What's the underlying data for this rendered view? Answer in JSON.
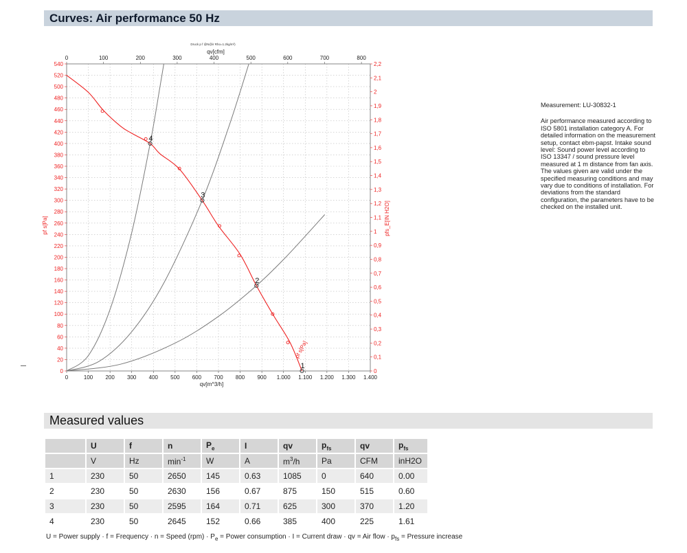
{
  "header": {
    "title": "Curves: Air performance 50 Hz"
  },
  "measured_section": {
    "title": "Measured values"
  },
  "side_note": {
    "measurement_id": "Measurement: LU-30832-1",
    "text": "Air performance measured according to ISO 5801 installation category A. For detailed information on the measurement setup, contact ebm-papst. Intake sound level: Sound power level according to ISO 13347 / sound pressure level measured at 1 m distance from fan axis. The values given are valid under the specified measuring conditions and may vary due to conditions of installation. For deviations from the standard configuration, the parameters have to be checked on the installed unit."
  },
  "table": {
    "headers": [
      {
        "main": "",
        "sub": ""
      },
      {
        "main": "U",
        "sub": ""
      },
      {
        "main": "f",
        "sub": ""
      },
      {
        "main": "n",
        "sub": ""
      },
      {
        "main": "P",
        "sub": "e"
      },
      {
        "main": "I",
        "sub": ""
      },
      {
        "main": "qv",
        "sub": ""
      },
      {
        "main": "p",
        "sub": "fs"
      },
      {
        "main": "qv",
        "sub": ""
      },
      {
        "main": "p",
        "sub": "fs"
      }
    ],
    "units": [
      {
        "main": "",
        "sup": ""
      },
      {
        "main": "V",
        "sup": ""
      },
      {
        "main": "Hz",
        "sup": ""
      },
      {
        "main": "min",
        "sup": "-1"
      },
      {
        "main": "W",
        "sup": ""
      },
      {
        "main": "A",
        "sup": ""
      },
      {
        "main": "m",
        "sup": "3",
        "tail": "/h"
      },
      {
        "main": "Pa",
        "sup": ""
      },
      {
        "main": "CFM",
        "sup": ""
      },
      {
        "main": "inH2O",
        "sup": ""
      }
    ],
    "rows": [
      [
        "1",
        "230",
        "50",
        "2650",
        "145",
        "0.63",
        "1085",
        "0",
        "640",
        "0.00"
      ],
      [
        "2",
        "230",
        "50",
        "2630",
        "156",
        "0.67",
        "875",
        "150",
        "515",
        "0.60"
      ],
      [
        "3",
        "230",
        "50",
        "2595",
        "164",
        "0.71",
        "625",
        "300",
        "370",
        "1.20"
      ],
      [
        "4",
        "230",
        "50",
        "2645",
        "152",
        "0.66",
        "385",
        "400",
        "225",
        "1.61"
      ]
    ]
  },
  "legend": {
    "parts": [
      {
        "text": "U = Power supply · f = Frequency · n = Speed (rpm) · P"
      },
      {
        "sub": "e"
      },
      {
        "text": " = Power consumption · I = Current draw · qv = Air flow · p"
      },
      {
        "sub": "fs"
      },
      {
        "text": " = Pressure increase"
      }
    ]
  },
  "chart_data": {
    "type": "line",
    "subtitle": "Druck p f @N@ir Rho=1.2kg/m³)",
    "xlabel": "qv[m^3/h]",
    "x2label": "qv[cfm]",
    "ylabel_left": "pf s[Pa]",
    "ylabel_right": "pfs_E[IN H2O]",
    "curve_label": "pf s[Pa]",
    "xlim": [
      0,
      1400
    ],
    "ylim": [
      0,
      540
    ],
    "x2lim": [
      0,
      800
    ],
    "y2lim": [
      0,
      2.2
    ],
    "x_ticks": [
      "0",
      "100",
      "200",
      "300",
      "400",
      "500",
      "600",
      "700",
      "800",
      "900",
      "1.000",
      "1.100",
      "1.200",
      "1.300",
      "1.400"
    ],
    "y_ticks": [
      "0",
      "20",
      "40",
      "60",
      "80",
      "100",
      "120",
      "140",
      "160",
      "180",
      "200",
      "220",
      "240",
      "260",
      "280",
      "300",
      "320",
      "340",
      "360",
      "380",
      "400",
      "420",
      "440",
      "460",
      "480",
      "500",
      "520",
      "540"
    ],
    "x2_ticks": [
      "0",
      "100",
      "200",
      "300",
      "400",
      "500",
      "600",
      "700",
      "800"
    ],
    "y2_ticks": [
      "0",
      "0,1",
      "0,2",
      "0,3",
      "0,4",
      "0,5",
      "0,6",
      "0,7",
      "0,8",
      "0,9",
      "1",
      "1,1",
      "1,2",
      "1,3",
      "1,4",
      "1,5",
      "1,6",
      "1,7",
      "1,8",
      "1,9",
      "2",
      "2,1",
      "2,2"
    ],
    "grid": true,
    "accent_color": "#ee2222",
    "system_color": "#7a7a7a",
    "fan_curve": {
      "x": [
        0,
        100,
        170,
        250,
        300,
        385,
        430,
        520,
        625,
        700,
        800,
        875,
        950,
        1030,
        1085
      ],
      "y": [
        520,
        490,
        458,
        430,
        418,
        400,
        382,
        355,
        300,
        255,
        205,
        150,
        100,
        50,
        0
      ]
    },
    "markers": {
      "x": [
        165,
        365,
        520,
        705,
        795,
        950,
        1020
      ],
      "y": [
        457,
        408,
        356,
        255,
        203,
        100,
        50
      ]
    },
    "operating_points": [
      {
        "label": "1",
        "x": 1085,
        "y": 0
      },
      {
        "label": "2",
        "x": 875,
        "y": 150
      },
      {
        "label": "3",
        "x": 625,
        "y": 300
      },
      {
        "label": "4",
        "x": 385,
        "y": 400
      }
    ],
    "system_curves": [
      {
        "x": [
          0,
          100,
          200,
          300,
          385,
          430,
          448
        ],
        "y": [
          0,
          27,
          108,
          243,
          400,
          499,
          540
        ]
      },
      {
        "x": [
          0,
          150,
          300,
          450,
          625,
          750,
          840
        ],
        "y": [
          0,
          17,
          69,
          156,
          300,
          432,
          540
        ]
      },
      {
        "x": [
          0,
          250,
          500,
          700,
          875,
          1000,
          1100,
          1190
        ],
        "y": [
          0,
          12,
          49,
          96,
          150,
          196,
          237,
          275
        ]
      }
    ]
  }
}
